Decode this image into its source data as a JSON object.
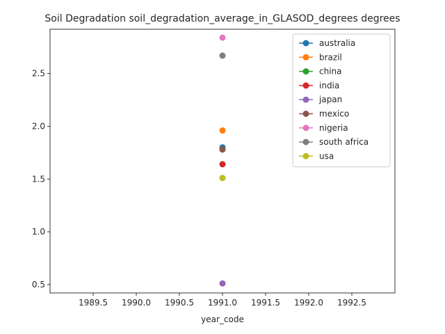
{
  "chart_data": {
    "type": "line",
    "title": "Soil Degradation soil_degradation_average_in_GLASOD_degrees degrees",
    "xlabel": "year_code",
    "ylabel": "",
    "xlim": [
      1989.0,
      1993.0
    ],
    "ylim": [
      0.42,
      2.92
    ],
    "x_ticks": [
      1989.5,
      1990.0,
      1990.5,
      1991.0,
      1991.5,
      1992.0,
      1992.5
    ],
    "x_tick_labels": [
      "1989.5",
      "1990.0",
      "1990.5",
      "1991.0",
      "1991.5",
      "1992.0",
      "1992.5"
    ],
    "y_ticks": [
      0.5,
      1.0,
      1.5,
      2.0,
      2.5
    ],
    "y_tick_labels": [
      "0.5",
      "1.0",
      "1.5",
      "2.0",
      "2.5"
    ],
    "grid": false,
    "legend_position": "top-right",
    "series": [
      {
        "name": "australia",
        "color": "#1f77b4",
        "x": [
          1991
        ],
        "y": [
          1.8
        ]
      },
      {
        "name": "brazil",
        "color": "#ff7f0e",
        "x": [
          1991
        ],
        "y": [
          1.96
        ]
      },
      {
        "name": "china",
        "color": "#2ca02c",
        "x": [
          1991
        ],
        "y": [
          1.78
        ]
      },
      {
        "name": "india",
        "color": "#d62728",
        "x": [
          1991
        ],
        "y": [
          1.64
        ]
      },
      {
        "name": "japan",
        "color": "#9467bd",
        "x": [
          1991
        ],
        "y": [
          0.51
        ]
      },
      {
        "name": "mexico",
        "color": "#8c564b",
        "x": [
          1991
        ],
        "y": [
          1.78
        ]
      },
      {
        "name": "nigeria",
        "color": "#e377c2",
        "x": [
          1991
        ],
        "y": [
          2.84
        ]
      },
      {
        "name": "south africa",
        "color": "#7f7f7f",
        "x": [
          1991
        ],
        "y": [
          2.67
        ]
      },
      {
        "name": "usa",
        "color": "#bcbd22",
        "x": [
          1991
        ],
        "y": [
          1.51
        ]
      }
    ]
  }
}
